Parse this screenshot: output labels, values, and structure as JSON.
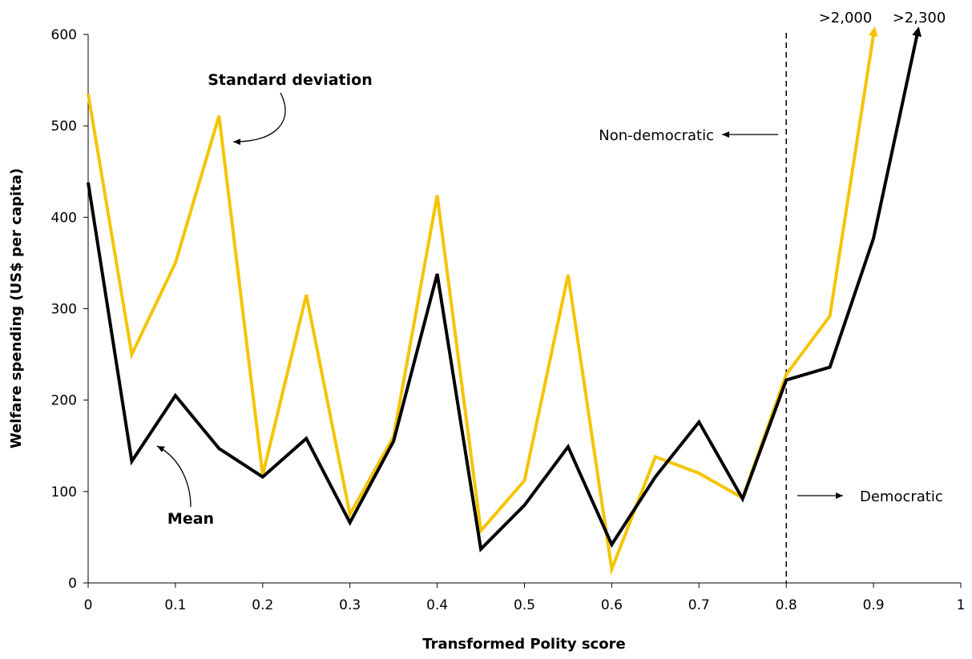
{
  "chart_data": {
    "type": "line",
    "title": "",
    "xlabel": "Transformed Polity score",
    "ylabel": "Welfare spending (US$ per capita)",
    "xlim": [
      0,
      1
    ],
    "ylim": [
      0,
      600
    ],
    "xticks": [
      0,
      0.1,
      0.2,
      0.3,
      0.4,
      0.5,
      0.6,
      0.7,
      0.8,
      0.9,
      1
    ],
    "xtick_labels": [
      "0",
      "0.1",
      "0.2",
      "0.3",
      "0.4",
      "0.5",
      "0.6",
      "0.7",
      "0.8",
      "0.9",
      "1"
    ],
    "yticks": [
      0,
      100,
      200,
      300,
      400,
      500,
      600
    ],
    "ytick_labels": [
      "0",
      "100",
      "200",
      "300",
      "400",
      "500",
      "600"
    ],
    "grid": false,
    "series": [
      {
        "name": "Standard deviation",
        "color": "#f5c400",
        "x": [
          0,
          0.05,
          0.1,
          0.15,
          0.2,
          0.25,
          0.3,
          0.35,
          0.4,
          0.45,
          0.5,
          0.55,
          0.6,
          0.65,
          0.7,
          0.75,
          0.8,
          0.85,
          0.9
        ],
        "y": [
          535,
          250,
          350,
          511,
          118,
          315,
          75,
          160,
          424,
          57,
          112,
          337,
          15,
          138,
          120,
          93,
          228,
          292,
          600
        ]
      },
      {
        "name": "Mean",
        "color": "#000000",
        "x": [
          0,
          0.05,
          0.1,
          0.15,
          0.2,
          0.25,
          0.3,
          0.35,
          0.4,
          0.45,
          0.5,
          0.55,
          0.6,
          0.65,
          0.7,
          0.75,
          0.8,
          0.85,
          0.9,
          0.95
        ],
        "y": [
          438,
          133,
          205,
          147,
          116,
          158,
          66,
          155,
          338,
          37,
          85,
          149,
          42,
          116,
          176,
          92,
          222,
          236,
          377,
          600
        ]
      }
    ],
    "divider": {
      "x": 0.8,
      "style": "dashed"
    },
    "annotations": {
      "sd_label": "Standard deviation",
      "mean_label": "Mean",
      "non_democratic": "Non-democratic",
      "democratic": "Democratic",
      "sd_overflow": ">2,000",
      "mean_overflow": ">2,300"
    }
  }
}
